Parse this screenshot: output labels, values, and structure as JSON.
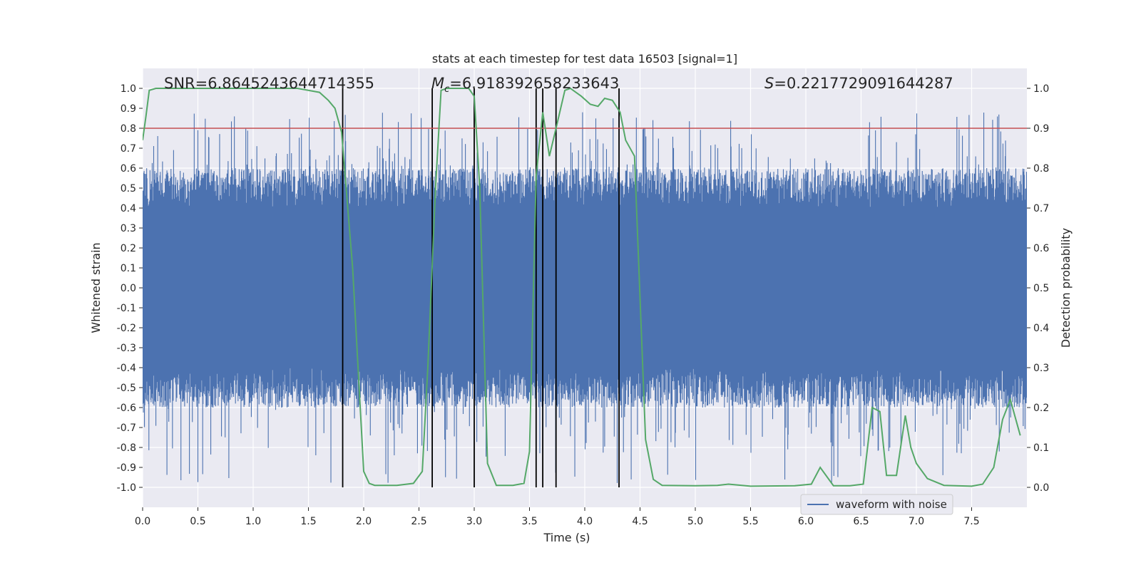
{
  "chart_data": {
    "type": "line",
    "title": "stats at each timestep for test data 16503 [signal=1]",
    "xlabel": "Time (s)",
    "ylabel": "Whitened strain",
    "y2label": "Detection probability",
    "xlim": [
      0,
      8
    ],
    "ylim": [
      -1.1,
      1.1
    ],
    "y2lim": [
      -0.05,
      1.05
    ],
    "xticks": [
      "0.0",
      "0.5",
      "1.0",
      "1.5",
      "2.0",
      "2.5",
      "3.0",
      "3.5",
      "4.0",
      "4.5",
      "5.0",
      "5.5",
      "6.0",
      "6.5",
      "7.0",
      "7.5"
    ],
    "yticks": [
      "1.0",
      "0.9",
      "0.8",
      "0.7",
      "0.6",
      "0.5",
      "0.4",
      "0.3",
      "0.2",
      "0.1",
      "0.0",
      "-0.1",
      "-0.2",
      "-0.3",
      "-0.4",
      "-0.5",
      "-0.6",
      "-0.7",
      "-0.8",
      "-0.9",
      "-1.0"
    ],
    "y2ticks": [
      "1.0",
      "0.9",
      "0.8",
      "0.7",
      "0.6",
      "0.5",
      "0.4",
      "0.3",
      "0.2",
      "0.1",
      "0.0"
    ],
    "annotations": {
      "snr": "SNR=6.8645243644714355",
      "mc_symbol": "M",
      "mc_sub": "c",
      "mc_value": "=6.918392658233643",
      "s_symbol": "S",
      "s_value": "=0.2217729091644287"
    },
    "threshold": {
      "y2": 0.9,
      "color": "#c44e52"
    },
    "vertical_lines_x": [
      1.81,
      2.62,
      3.0,
      3.56,
      3.62,
      3.74,
      4.31
    ],
    "series": [
      {
        "name": "waveform with noise",
        "color": "#4c72b0",
        "envelope": {
          "dense_low": -0.4,
          "dense_high": 0.4,
          "spike_max": 0.88,
          "spike_min": -0.98
        }
      },
      {
        "name": "detection probability",
        "color": "#55a868",
        "axis": "right",
        "x": [
          0.0,
          0.03,
          0.06,
          0.12,
          0.3,
          0.6,
          1.0,
          1.4,
          1.6,
          1.68,
          1.74,
          1.8,
          1.9,
          2.0,
          2.05,
          2.1,
          2.3,
          2.45,
          2.53,
          2.58,
          2.65,
          2.7,
          2.75,
          2.85,
          2.95,
          3.0,
          3.05,
          3.12,
          3.2,
          3.35,
          3.45,
          3.5,
          3.56,
          3.62,
          3.68,
          3.74,
          3.82,
          3.87,
          3.97,
          4.05,
          4.12,
          4.18,
          4.25,
          4.32,
          4.37,
          4.45,
          4.55,
          4.62,
          4.7,
          5.0,
          5.2,
          5.3,
          5.5,
          5.9,
          6.05,
          6.13,
          6.25,
          6.4,
          6.52,
          6.6,
          6.67,
          6.73,
          6.82,
          6.9,
          6.95,
          7.0,
          7.1,
          7.25,
          7.5,
          7.6,
          7.7,
          7.78,
          7.85,
          7.94
        ],
        "y": [
          0.87,
          0.93,
          0.995,
          1.0,
          1.0,
          1.0,
          1.0,
          1.0,
          0.99,
          0.97,
          0.95,
          0.89,
          0.55,
          0.04,
          0.01,
          0.005,
          0.005,
          0.01,
          0.04,
          0.3,
          0.75,
          0.995,
          1.0,
          1.0,
          1.0,
          0.98,
          0.75,
          0.06,
          0.005,
          0.005,
          0.01,
          0.09,
          0.78,
          0.94,
          0.83,
          0.9,
          0.995,
          1.0,
          0.98,
          0.96,
          0.955,
          0.975,
          0.97,
          0.94,
          0.87,
          0.83,
          0.12,
          0.02,
          0.005,
          0.004,
          0.005,
          0.008,
          0.003,
          0.004,
          0.008,
          0.05,
          0.004,
          0.004,
          0.008,
          0.2,
          0.19,
          0.03,
          0.03,
          0.18,
          0.1,
          0.06,
          0.022,
          0.005,
          0.003,
          0.008,
          0.05,
          0.17,
          0.22,
          0.13
        ]
      }
    ],
    "legend": {
      "label": "waveform with noise",
      "placement": "lower-right"
    }
  }
}
